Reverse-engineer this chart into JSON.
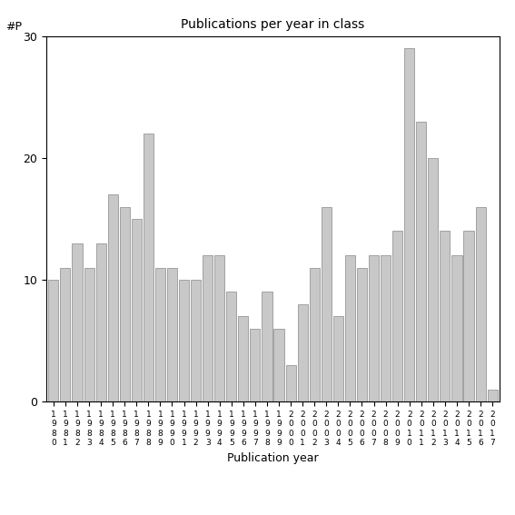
{
  "title": "Publications per year in class",
  "xlabel": "Publication year",
  "ylabel": "#P",
  "bar_color": "#c8c8c8",
  "edge_color": "#888888",
  "background_color": "#ffffff",
  "ylim": [
    0,
    30
  ],
  "yticks": [
    0,
    10,
    20,
    30
  ],
  "categories": [
    "1\n9\n8\n0",
    "1\n9\n8\n1",
    "1\n9\n8\n2",
    "1\n9\n8\n3",
    "1\n9\n8\n4",
    "1\n9\n8\n5",
    "1\n9\n8\n6",
    "1\n9\n8\n7",
    "1\n9\n8\n8",
    "1\n9\n8\n9",
    "1\n9\n9\n0",
    "1\n9\n9\n1",
    "1\n9\n9\n2",
    "1\n9\n9\n3",
    "1\n9\n9\n4",
    "1\n9\n9\n5",
    "1\n9\n9\n6",
    "1\n9\n9\n7",
    "1\n9\n9\n8",
    "1\n9\n9\n9",
    "2\n0\n0\n0",
    "2\n0\n0\n1",
    "2\n0\n0\n2",
    "2\n0\n0\n3",
    "2\n0\n0\n4",
    "2\n0\n0\n5",
    "2\n0\n0\n6",
    "2\n0\n0\n7",
    "2\n0\n0\n8",
    "2\n0\n0\n9",
    "2\n0\n1\n0",
    "2\n0\n1\n1",
    "2\n0\n1\n2",
    "2\n0\n1\n3",
    "2\n0\n1\n4",
    "2\n0\n1\n5",
    "2\n0\n1\n6",
    "2\n0\n1\n7"
  ],
  "values": [
    10,
    11,
    13,
    11,
    13,
    17,
    16,
    15,
    22,
    11,
    11,
    10,
    10,
    12,
    12,
    9,
    7,
    6,
    9,
    6,
    3,
    8,
    11,
    16,
    7,
    12,
    11,
    12,
    12,
    14,
    29,
    23,
    20,
    14,
    12,
    14,
    16,
    1
  ]
}
